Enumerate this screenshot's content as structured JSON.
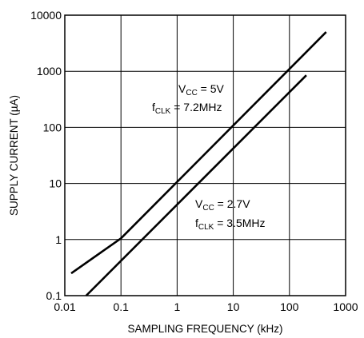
{
  "chart_data": {
    "type": "line",
    "xlabel": "SAMPLING FREQUENCY (kHz)",
    "ylabel": "SUPPLY CURRENT (µA)",
    "xscale": "log",
    "yscale": "log",
    "xlim": [
      0.01,
      1000
    ],
    "ylim": [
      0.1,
      10000
    ],
    "grid": true,
    "x_ticks": [
      0.01,
      0.1,
      1,
      10,
      100,
      1000
    ],
    "x_tick_labels": [
      "0.01",
      "0.1",
      "1",
      "10",
      "100",
      "1000"
    ],
    "y_ticks": [
      0.1,
      1,
      10,
      100,
      1000,
      10000
    ],
    "y_tick_labels": [
      "0.1",
      "1",
      "10",
      "100",
      "1000",
      "10000"
    ],
    "series": [
      {
        "x": [
          0.013,
          0.1,
          450
        ],
        "y": [
          0.25,
          1.05,
          5000
        ],
        "annotation": {
          "vcc_main": "V",
          "vcc_sub": "CC",
          "vcc_rest": " = 5V",
          "f_main": "f",
          "f_sub": "CLK",
          "f_rest": " = 7.2MHz"
        }
      },
      {
        "x": [
          0.024,
          200
        ],
        "y": [
          0.1,
          850
        ],
        "annotation": {
          "vcc_main": "V",
          "vcc_sub": "CC",
          "vcc_rest": " = 2.7V",
          "f_main": "f",
          "f_sub": "CLK",
          "f_rest": " = 3.5MHz"
        }
      }
    ]
  }
}
